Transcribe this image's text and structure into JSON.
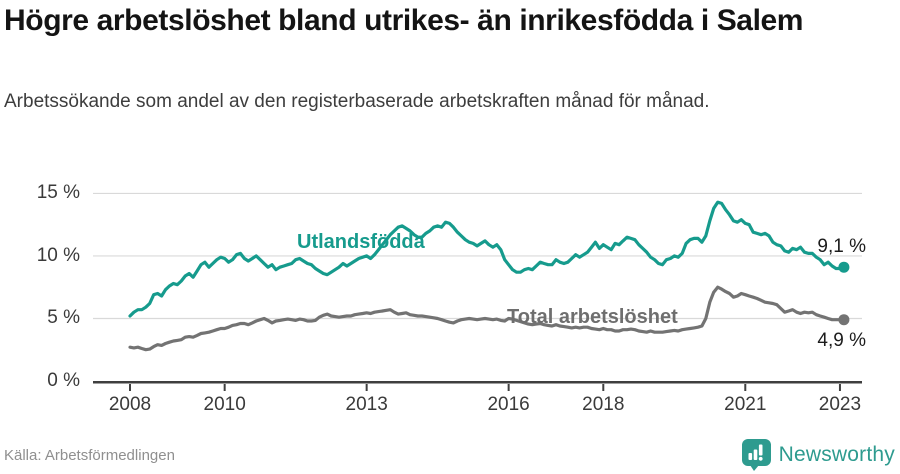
{
  "header": {
    "title": "Högre arbetslöshet bland utrikes- än inrikesfödda i Salem",
    "subtitle": "Arbetssökande som andel av den registerbaserade arbetskraften månad för månad."
  },
  "footer": {
    "source": "Källa: Arbetsförmedlingen",
    "brand": "Newsworthy",
    "brand_color": "#2E9B8F"
  },
  "chart_data": {
    "type": "line",
    "title": "Högre arbetslöshet bland utrikes- än inrikesfödda i Salem",
    "subtitle": "Arbetssökande som andel av den registerbaserade arbetskraften månad för månad.",
    "x_start": "2008-01",
    "x_end": "2023-02",
    "points_per_year": 12,
    "ylim": [
      0,
      15.8
    ],
    "grid": "horizontal",
    "legend_position": "inline-labels",
    "y_ticks": [
      {
        "value": 15,
        "label": "15 %"
      },
      {
        "value": 10,
        "label": "10 %"
      },
      {
        "value": 5,
        "label": "5 %"
      },
      {
        "value": 0,
        "label": "0 %"
      }
    ],
    "x_ticks": [
      {
        "year": 2008,
        "label": "2008"
      },
      {
        "year": 2010,
        "label": "2010"
      },
      {
        "year": 2013,
        "label": "2013"
      },
      {
        "year": 2016,
        "label": "2016"
      },
      {
        "year": 2018,
        "label": "2018"
      },
      {
        "year": 2021,
        "label": "2021"
      },
      {
        "year": 2023,
        "label": "2023"
      }
    ],
    "series": [
      {
        "name": "Utlandsfödda",
        "color": "#169B8D",
        "end_label": "9,1 %",
        "end_value": 9.1,
        "values": [
          5.2,
          5.5,
          5.7,
          5.7,
          5.9,
          6.2,
          6.9,
          7.0,
          6.8,
          7.3,
          7.6,
          7.8,
          7.7,
          8.0,
          8.4,
          8.6,
          8.3,
          8.8,
          9.3,
          9.5,
          9.1,
          9.4,
          9.7,
          9.9,
          9.8,
          9.5,
          9.7,
          10.1,
          10.2,
          9.8,
          9.6,
          9.8,
          10.0,
          9.7,
          9.4,
          9.1,
          9.3,
          8.9,
          9.1,
          9.2,
          9.3,
          9.4,
          9.7,
          9.8,
          9.6,
          9.4,
          9.3,
          9.0,
          8.8,
          8.6,
          8.5,
          8.7,
          8.9,
          9.1,
          9.4,
          9.2,
          9.4,
          9.6,
          9.8,
          9.9,
          10.0,
          9.8,
          10.1,
          10.5,
          10.9,
          11.3,
          11.7,
          12.0,
          12.3,
          12.4,
          12.2,
          12.0,
          11.7,
          11.5,
          11.5,
          11.8,
          12.0,
          12.3,
          12.4,
          12.3,
          12.7,
          12.6,
          12.3,
          11.9,
          11.6,
          11.3,
          11.1,
          11.0,
          10.8,
          11.0,
          11.2,
          10.9,
          10.7,
          10.9,
          10.5,
          9.7,
          9.3,
          8.9,
          8.7,
          8.7,
          8.9,
          9.0,
          8.9,
          9.2,
          9.5,
          9.4,
          9.3,
          9.3,
          9.7,
          9.5,
          9.4,
          9.5,
          9.8,
          10.1,
          9.9,
          10.1,
          10.3,
          10.7,
          11.1,
          10.6,
          10.9,
          10.7,
          10.5,
          11.0,
          10.9,
          11.2,
          11.5,
          11.4,
          11.3,
          10.9,
          10.6,
          10.3,
          9.9,
          9.7,
          9.4,
          9.3,
          9.7,
          9.8,
          10.0,
          9.9,
          10.2,
          11.0,
          11.3,
          11.4,
          11.4,
          11.1,
          11.6,
          12.8,
          13.8,
          14.3,
          14.2,
          13.7,
          13.3,
          12.8,
          12.7,
          12.9,
          12.6,
          12.5,
          11.9,
          11.8,
          11.7,
          11.8,
          11.6,
          11.1,
          10.9,
          10.8,
          10.4,
          10.3,
          10.6,
          10.5,
          10.7,
          10.3,
          10.2,
          10.2,
          9.9,
          9.7,
          9.3,
          9.5,
          9.2,
          9.0,
          9.0,
          9.1
        ]
      },
      {
        "name": "Total arbetslöshet",
        "color": "#737373",
        "end_label": "4,9 %",
        "end_value": 4.9,
        "values": [
          2.7,
          2.65,
          2.7,
          2.6,
          2.5,
          2.55,
          2.75,
          2.9,
          2.85,
          3.0,
          3.1,
          3.2,
          3.25,
          3.3,
          3.5,
          3.55,
          3.5,
          3.65,
          3.8,
          3.85,
          3.9,
          4.0,
          4.1,
          4.2,
          4.2,
          4.3,
          4.45,
          4.5,
          4.6,
          4.6,
          4.5,
          4.65,
          4.8,
          4.9,
          5.0,
          4.85,
          4.65,
          4.8,
          4.85,
          4.9,
          4.95,
          4.9,
          4.85,
          4.95,
          4.9,
          4.8,
          4.8,
          4.85,
          5.1,
          5.25,
          5.35,
          5.2,
          5.15,
          5.1,
          5.15,
          5.2,
          5.2,
          5.3,
          5.35,
          5.4,
          5.45,
          5.4,
          5.5,
          5.55,
          5.6,
          5.65,
          5.7,
          5.5,
          5.35,
          5.4,
          5.45,
          5.3,
          5.25,
          5.2,
          5.2,
          5.15,
          5.1,
          5.05,
          5.0,
          4.9,
          4.8,
          4.7,
          4.65,
          4.8,
          4.9,
          4.95,
          5.0,
          4.95,
          4.9,
          4.95,
          5.0,
          4.95,
          4.9,
          4.95,
          4.85,
          4.8,
          5.0,
          4.95,
          4.85,
          4.75,
          4.65,
          4.55,
          4.5,
          4.55,
          4.6,
          4.5,
          4.45,
          4.4,
          4.5,
          4.4,
          4.35,
          4.3,
          4.25,
          4.3,
          4.25,
          4.3,
          4.3,
          4.2,
          4.15,
          4.1,
          4.2,
          4.1,
          4.1,
          4.0,
          4.0,
          4.1,
          4.1,
          4.15,
          4.1,
          4.0,
          3.95,
          3.9,
          4.0,
          3.9,
          3.9,
          3.9,
          3.95,
          4.0,
          4.05,
          4.0,
          4.1,
          4.15,
          4.2,
          4.25,
          4.3,
          4.4,
          5.0,
          6.3,
          7.1,
          7.5,
          7.35,
          7.15,
          7.0,
          6.7,
          6.8,
          7.0,
          6.9,
          6.8,
          6.7,
          6.6,
          6.45,
          6.3,
          6.25,
          6.2,
          6.1,
          5.8,
          5.5,
          5.6,
          5.7,
          5.5,
          5.4,
          5.5,
          5.45,
          5.5,
          5.3,
          5.2,
          5.1,
          5.0,
          4.9,
          4.9,
          4.9,
          4.9
        ]
      }
    ]
  }
}
